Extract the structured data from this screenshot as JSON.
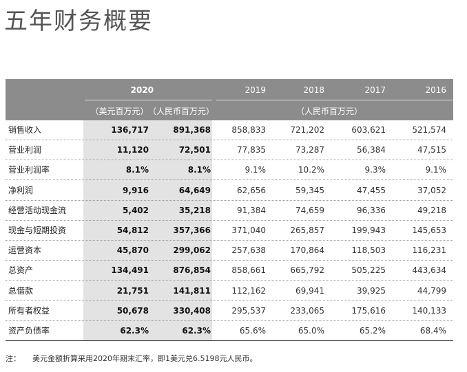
{
  "title": "五年财务概要",
  "header": {
    "years": [
      "2020",
      "2019",
      "2018",
      "2017",
      "2016"
    ],
    "unit_2020_usd": "（美元百万元）",
    "unit_2020_rmb": "（人民币百万元）",
    "unit_other": "（人民币百万元）"
  },
  "rows": [
    {
      "label": "销售收入",
      "usd": "136,717",
      "rmb": "891,368",
      "y2019": "858,833",
      "y2018": "721,202",
      "y2017": "603,621",
      "y2016": "521,574"
    },
    {
      "label": "营业利润",
      "usd": "11,120",
      "rmb": "72,501",
      "y2019": "77,835",
      "y2018": "73,287",
      "y2017": "56,384",
      "y2016": "47,515"
    },
    {
      "label": "营业利润率",
      "usd": "8.1%",
      "rmb": "8.1%",
      "y2019": "9.1%",
      "y2018": "10.2%",
      "y2017": "9.3%",
      "y2016": "9.1%"
    },
    {
      "label": "净利润",
      "usd": "9,916",
      "rmb": "64,649",
      "y2019": "62,656",
      "y2018": "59,345",
      "y2017": "47,455",
      "y2016": "37,052"
    },
    {
      "label": "经营活动现金流",
      "usd": "5,402",
      "rmb": "35,218",
      "y2019": "91,384",
      "y2018": "74,659",
      "y2017": "96,336",
      "y2016": "49,218"
    },
    {
      "label": "现金与短期投资",
      "usd": "54,812",
      "rmb": "357,366",
      "y2019": "371,040",
      "y2018": "265,857",
      "y2017": "199,943",
      "y2016": "145,653"
    },
    {
      "label": "运营资本",
      "usd": "45,870",
      "rmb": "299,062",
      "y2019": "257,638",
      "y2018": "170,864",
      "y2017": "118,503",
      "y2016": "116,231"
    },
    {
      "label": "总资产",
      "usd": "134,491",
      "rmb": "876,854",
      "y2019": "858,661",
      "y2018": "665,792",
      "y2017": "505,225",
      "y2016": "443,634"
    },
    {
      "label": "总借款",
      "usd": "21,751",
      "rmb": "141,811",
      "y2019": "112,162",
      "y2018": "69,941",
      "y2017": "39,925",
      "y2016": "44,799"
    },
    {
      "label": "所有者权益",
      "usd": "50,678",
      "rmb": "330,408",
      "y2019": "295,537",
      "y2018": "233,065",
      "y2017": "175,616",
      "y2016": "140,133"
    },
    {
      "label": "资产负债率",
      "usd": "62.3%",
      "rmb": "62.3%",
      "y2019": "65.6%",
      "y2018": "65.0%",
      "y2017": "65.2%",
      "y2016": "68.4%"
    }
  ],
  "note": {
    "label": "注：",
    "text": "美元金额折算采用2020年期末汇率，即1美元兑6.5198元人民币。"
  }
}
